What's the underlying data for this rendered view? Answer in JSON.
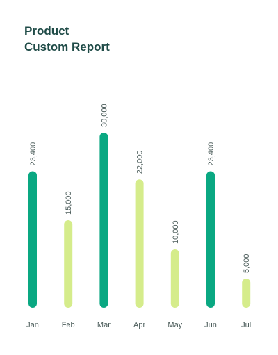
{
  "chart_data": {
    "type": "bar",
    "title_lines": [
      "Product",
      "Custom Report"
    ],
    "categories": [
      "Jan",
      "Feb",
      "Mar",
      "Apr",
      "May",
      "Jun",
      "Jul"
    ],
    "values": [
      23400,
      15000,
      30000,
      22000,
      10000,
      23400,
      5000
    ],
    "value_labels": [
      "23,400",
      "15,000",
      "30,000",
      "22,000",
      "10,000",
      "23,400",
      "5,000"
    ],
    "bar_colors": [
      "#0aa882",
      "#d5ec8b",
      "#0aa882",
      "#d5ec8b",
      "#d5ec8b",
      "#0aa882",
      "#d5ec8b"
    ],
    "ylim": [
      0,
      30000
    ],
    "grid": false,
    "legend": "none"
  }
}
